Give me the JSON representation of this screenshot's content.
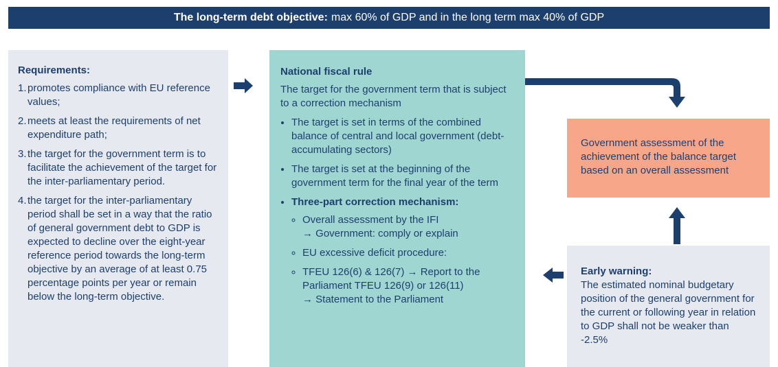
{
  "banner": {
    "bold": "The long-term debt objective:",
    "text": "max 60% of GDP and in the long term max 40% of GDP"
  },
  "requirements": {
    "title": "Requirements:",
    "items": [
      {
        "number": "1.",
        "text": "promotes compliance with EU reference values;"
      },
      {
        "number": "2.",
        "text": "meets at least the requirements of net expenditure path;"
      },
      {
        "number": "3.",
        "text": "the target for the government term is to facilitate the achievement of the target for the inter-parliamentary period."
      },
      {
        "number": "4.",
        "text": "the target for the inter-parliamentary period shall be set in a way that the ratio of general government debt to GDP is expected to decline over the eight-year reference period towards the long-term objective by an average of at least 0.75 percentage points per year or remain below the long-term objective."
      }
    ]
  },
  "national_rule": {
    "title": "National fiscal rule",
    "intro": "The target for the government term that is subject to a correction mechanism",
    "bullets": [
      "The target is set in terms of the combined balance of central and local government (debt-accumulating sectors)",
      "The target is set at the beginning of the government term for the final year of the term"
    ],
    "mechanism": {
      "title": "Three-part correction mechanism:",
      "items": [
        "Overall assessment by the IFI\n→ Government: comply or explain",
        "EU excessive deficit procedure:",
        "TFEU 126(6) & 126(7) → Report to the Parliament TFEU 126(9) or 126(11)\n→ Statement to the Parliament"
      ]
    }
  },
  "assessment": {
    "text": "Government assessment of the achievement of the balance target based on an overall assessment"
  },
  "early_warning": {
    "title": "Early warning:",
    "text": "The estimated nominal budgetary position of the general government for the current or following year in relation to GDP shall not be weaker than -2.5%"
  }
}
